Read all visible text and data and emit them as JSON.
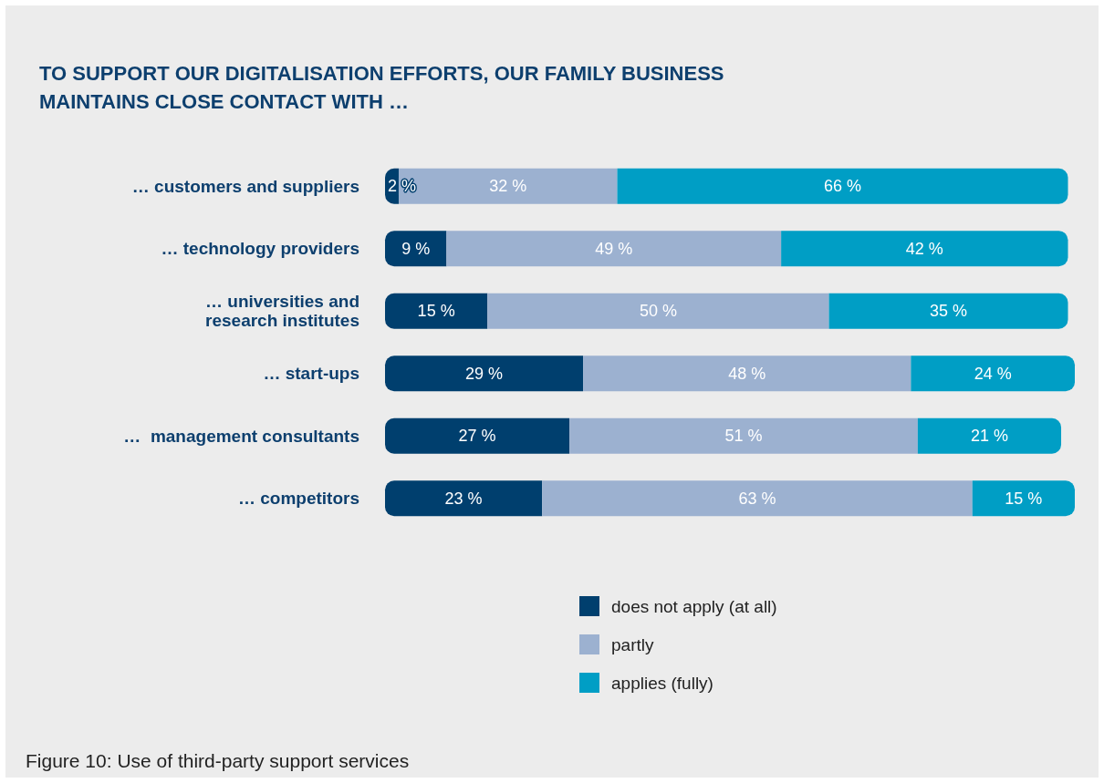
{
  "chart_data": {
    "type": "bar",
    "orientation": "horizontal",
    "stacked": true,
    "title": "TO SUPPORT OUR DIGITALISATION EFFORTS, OUR FAMILY BUSINESS MAINTAINS CLOSE CONTACT WITH …",
    "categories": [
      "… customers and suppliers",
      "… technology providers",
      "… universities and\nresearch institutes",
      "… start-ups",
      "…  management consultants",
      "… competitors"
    ],
    "series": [
      {
        "name": "does not apply (at all)",
        "color": "#003f6e",
        "values": [
          2,
          9,
          15,
          29,
          27,
          23
        ],
        "value_labels": [
          "2 %",
          "9 %",
          "15 %",
          "29 %",
          "27 %",
          "23 %"
        ]
      },
      {
        "name": "partly",
        "color": "#9cb1d0",
        "values": [
          32,
          49,
          50,
          48,
          51,
          63
        ],
        "value_labels": [
          "32 %",
          "49 %",
          "50 %",
          "48 %",
          "51 %",
          "63 %"
        ]
      },
      {
        "name": "applies (fully)",
        "color": "#009ec5",
        "values": [
          66,
          42,
          35,
          24,
          21,
          15
        ],
        "value_labels": [
          "66 %",
          "42 %",
          "35 %",
          "24 %",
          "21 %",
          "15 %"
        ]
      }
    ],
    "legend": "bottom",
    "annotations": [
      "Figure 10: Use of third-party support services"
    ]
  }
}
